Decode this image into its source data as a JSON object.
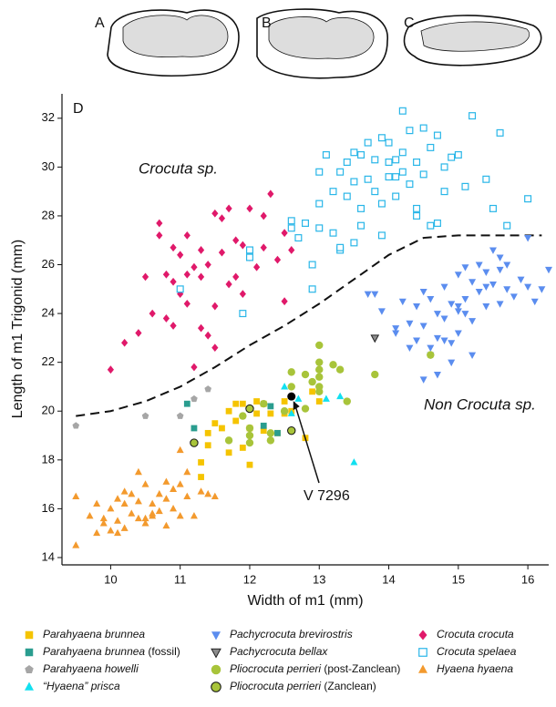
{
  "panels": [
    "A",
    "B",
    "C",
    "D"
  ],
  "chart_data": {
    "type": "scatter",
    "x_label": "Width of m1 (mm)",
    "y_label": "Length of m1 Trigonid (mm)",
    "annotations": [
      "Crocuta sp.",
      "Non Crocuta sp."
    ],
    "xlim": [
      9.3,
      16.3
    ],
    "ylim": [
      13.7,
      33
    ],
    "xticks": [
      10,
      11,
      12,
      13,
      14,
      15,
      16
    ],
    "yticks": [
      14,
      16,
      18,
      20,
      22,
      24,
      26,
      28,
      30,
      32
    ],
    "boundary": {
      "x": [
        9.5,
        10,
        10.5,
        11,
        11.5,
        12,
        12.5,
        13,
        13.5,
        14,
        14.5,
        15,
        15.5,
        16.2
      ],
      "y": [
        19.8,
        20.0,
        20.4,
        21.0,
        21.8,
        22.7,
        23.5,
        24.4,
        25.4,
        26.4,
        27.1,
        27.2,
        27.2,
        27.2
      ],
      "style": "dashed",
      "color": "#111111"
    },
    "highlight": {
      "label": "V 7296",
      "x": 12.6,
      "y": 20.6,
      "color": "#000000"
    },
    "series": [
      {
        "name": "Parahyaena brunnea",
        "color": "#f5c400",
        "marker": "square",
        "x": [
          11.3,
          11.4,
          11.4,
          11.6,
          11.7,
          11.8,
          11.9,
          11.9,
          12.0,
          12.0,
          12.1,
          12.2,
          12.2,
          12.3,
          12.4,
          12.5,
          12.6,
          12.8,
          12.9,
          13.0,
          11.7,
          11.8,
          12.1,
          12.5,
          11.5,
          11.3
        ],
        "values": [
          17.9,
          19.1,
          18.6,
          19.3,
          20.0,
          19.6,
          18.5,
          20.3,
          19.3,
          17.8,
          19.9,
          20.3,
          19.2,
          19.9,
          19.1,
          19.9,
          20.0,
          18.9,
          20.8,
          20.4,
          18.3,
          20.3,
          20.4,
          20.4,
          19.5,
          17.3
        ]
      },
      {
        "name": "Parahyaena brunnea (fossil)",
        "color": "#2a9d8f",
        "marker": "square",
        "x": [
          11.1,
          11.2,
          12.2,
          12.4,
          12.3
        ],
        "values": [
          20.3,
          19.3,
          19.4,
          19.1,
          20.2
        ]
      },
      {
        "name": "Parahyaena howelli",
        "color": "#a6a6a6",
        "marker": "pentagon",
        "x": [
          9.5,
          10.5,
          11.0,
          11.4,
          11.2
        ],
        "values": [
          19.4,
          19.8,
          19.8,
          20.9,
          20.5
        ]
      },
      {
        "name": "“Hyaena” prisca",
        "color": "#12e0f0",
        "marker": "triangle-up",
        "x": [
          12.5,
          12.7,
          12.6,
          13.1,
          13.3,
          13.5
        ],
        "values": [
          21.0,
          20.5,
          19.9,
          20.5,
          20.6,
          17.9
        ]
      },
      {
        "name": "Pachycrocuta brevirostris",
        "color": "#5b8def",
        "marker": "triangle-down",
        "x": [
          13.7,
          13.9,
          14.1,
          14.2,
          14.3,
          14.4,
          14.4,
          14.5,
          14.5,
          14.6,
          14.6,
          14.7,
          14.7,
          14.8,
          14.8,
          14.9,
          14.9,
          15.0,
          15.0,
          15.0,
          15.1,
          15.1,
          15.2,
          15.2,
          15.3,
          15.3,
          15.4,
          15.4,
          15.5,
          15.5,
          15.6,
          15.6,
          15.7,
          15.7,
          15.8,
          15.9,
          16.0,
          16.1,
          16.2,
          16.3,
          14.5,
          14.6,
          14.8,
          15.0,
          15.2,
          15.4,
          14.1,
          14.3,
          14.7,
          14.9,
          15.1,
          13.8,
          16.0,
          15.6
        ],
        "values": [
          24.8,
          24.1,
          23.4,
          24.5,
          23.6,
          22.9,
          24.3,
          21.3,
          23.5,
          24.6,
          22.3,
          24.0,
          23.0,
          25.1,
          23.8,
          24.4,
          22.8,
          25.6,
          24.1,
          23.2,
          25.9,
          24.6,
          25.3,
          23.7,
          26.0,
          24.9,
          25.7,
          24.3,
          26.6,
          25.2,
          25.8,
          24.4,
          26.0,
          25.0,
          24.7,
          25.4,
          25.1,
          24.5,
          25.0,
          25.8,
          24.9,
          22.6,
          22.9,
          24.3,
          22.3,
          25.1,
          23.2,
          22.6,
          21.5,
          22.0,
          24.0,
          24.8,
          27.1,
          26.3
        ]
      },
      {
        "name": "Pachycrocuta bellax",
        "color": "#8c8c8c",
        "edgecolor": "#222222",
        "marker": "triangle-down",
        "x": [
          13.8
        ],
        "values": [
          23.0
        ]
      },
      {
        "name": "Pliocrocuta perrieri (post-Zanclean)",
        "color": "#a8c43a",
        "marker": "circle",
        "x": [
          11.7,
          11.9,
          12.0,
          12.0,
          12.2,
          12.3,
          12.5,
          12.6,
          12.6,
          12.8,
          12.8,
          12.9,
          13.0,
          13.0,
          13.0,
          13.0,
          13.0,
          13.0,
          13.2,
          13.3,
          13.4,
          13.8,
          14.6,
          12.0,
          12.3
        ],
        "values": [
          18.8,
          19.8,
          19.3,
          18.7,
          20.3,
          19.1,
          20.0,
          21.6,
          21.0,
          20.1,
          21.5,
          21.2,
          22.7,
          22.0,
          21.7,
          21.4,
          21.0,
          20.8,
          21.9,
          21.7,
          20.4,
          21.5,
          22.3,
          19.0,
          18.8
        ]
      },
      {
        "name": "Pliocrocuta perrieri (Zanclean)",
        "color": "#a8c43a",
        "edgecolor": "#111111",
        "marker": "circle",
        "x": [
          11.2,
          12.0,
          12.6
        ],
        "values": [
          18.7,
          20.1,
          19.2
        ]
      },
      {
        "name": "Crocuta crocuta",
        "color": "#e0196a",
        "marker": "diamond",
        "x": [
          10.0,
          10.2,
          10.4,
          10.5,
          10.6,
          10.7,
          10.8,
          10.8,
          10.9,
          10.9,
          11.0,
          11.0,
          11.1,
          11.1,
          11.2,
          11.2,
          11.3,
          11.3,
          11.4,
          11.4,
          11.5,
          11.5,
          11.6,
          11.6,
          11.7,
          11.8,
          11.8,
          11.9,
          11.9,
          12.0,
          12.0,
          12.1,
          12.2,
          12.2,
          12.3,
          12.4,
          12.5,
          12.5,
          12.6,
          10.9,
          11.1,
          11.3,
          11.5,
          11.7,
          10.7
        ],
        "values": [
          21.7,
          22.8,
          23.2,
          25.5,
          24.0,
          27.2,
          25.6,
          23.8,
          25.3,
          23.5,
          26.4,
          24.8,
          27.2,
          25.6,
          21.8,
          25.9,
          23.4,
          25.5,
          26.0,
          23.1,
          28.1,
          24.3,
          26.5,
          27.9,
          28.3,
          27.0,
          25.5,
          26.8,
          24.8,
          26.3,
          28.3,
          25.9,
          28.0,
          26.7,
          28.9,
          26.2,
          27.3,
          24.5,
          26.6,
          26.7,
          24.4,
          26.6,
          22.6,
          25.2,
          27.7
        ]
      },
      {
        "name": "Crocuta spelaea",
        "color": "#29b6e8",
        "marker": "square-open",
        "x": [
          11.0,
          11.9,
          12.0,
          12.0,
          12.6,
          12.7,
          12.8,
          12.9,
          13.0,
          13.0,
          13.1,
          13.2,
          13.3,
          13.3,
          13.4,
          13.4,
          13.5,
          13.5,
          13.6,
          13.6,
          13.7,
          13.7,
          13.8,
          13.8,
          13.9,
          13.9,
          14.0,
          14.0,
          14.0,
          14.1,
          14.1,
          14.2,
          14.2,
          14.3,
          14.3,
          14.4,
          14.4,
          14.5,
          14.5,
          14.6,
          14.6,
          14.7,
          14.8,
          14.8,
          14.9,
          15.0,
          15.2,
          15.4,
          15.6,
          16.0,
          12.9,
          13.0,
          13.2,
          13.5,
          14.2,
          14.4,
          14.7,
          15.1,
          15.5,
          15.7,
          13.9,
          14.1,
          13.6,
          13.3,
          12.6
        ],
        "values": [
          25.0,
          24.0,
          26.3,
          26.6,
          27.8,
          27.1,
          27.7,
          25.0,
          29.8,
          28.5,
          30.5,
          29.0,
          26.6,
          29.8,
          30.2,
          28.8,
          29.4,
          30.6,
          30.5,
          28.3,
          31.0,
          29.5,
          30.3,
          29.0,
          31.2,
          28.5,
          30.2,
          29.6,
          31.0,
          28.8,
          30.3,
          32.3,
          29.8,
          31.5,
          29.3,
          30.2,
          28.0,
          31.6,
          29.7,
          30.8,
          27.6,
          31.3,
          30.0,
          29.0,
          30.4,
          30.5,
          32.1,
          29.5,
          31.4,
          28.7,
          26.0,
          27.5,
          27.3,
          26.9,
          30.6,
          28.3,
          27.7,
          29.2,
          28.3,
          27.6,
          27.2,
          29.6,
          27.6,
          26.7,
          27.5
        ]
      },
      {
        "name": "Hyaena hyaena",
        "color": "#f39a2e",
        "marker": "triangle-up",
        "x": [
          9.5,
          9.5,
          9.7,
          9.8,
          9.8,
          9.9,
          10.0,
          10.0,
          10.1,
          10.1,
          10.2,
          10.2,
          10.3,
          10.3,
          10.4,
          10.4,
          10.5,
          10.5,
          10.6,
          10.6,
          10.7,
          10.7,
          10.8,
          10.8,
          10.9,
          10.9,
          11.0,
          11.0,
          11.1,
          11.1,
          11.2,
          11.3,
          11.4,
          11.5,
          10.2,
          10.4,
          10.6,
          10.8,
          11.0,
          9.9,
          10.1,
          10.5
        ],
        "values": [
          14.5,
          16.5,
          15.7,
          15.0,
          16.2,
          15.4,
          15.1,
          16.0,
          16.4,
          15.5,
          15.2,
          16.2,
          15.8,
          16.6,
          15.6,
          16.3,
          15.4,
          17.0,
          15.7,
          16.2,
          15.9,
          16.6,
          15.3,
          17.1,
          16.0,
          16.8,
          15.7,
          18.4,
          16.5,
          17.5,
          15.7,
          16.7,
          16.6,
          16.5,
          16.7,
          17.5,
          15.8,
          16.4,
          17.0,
          15.6,
          15.0,
          15.6
        ]
      }
    ]
  }
}
